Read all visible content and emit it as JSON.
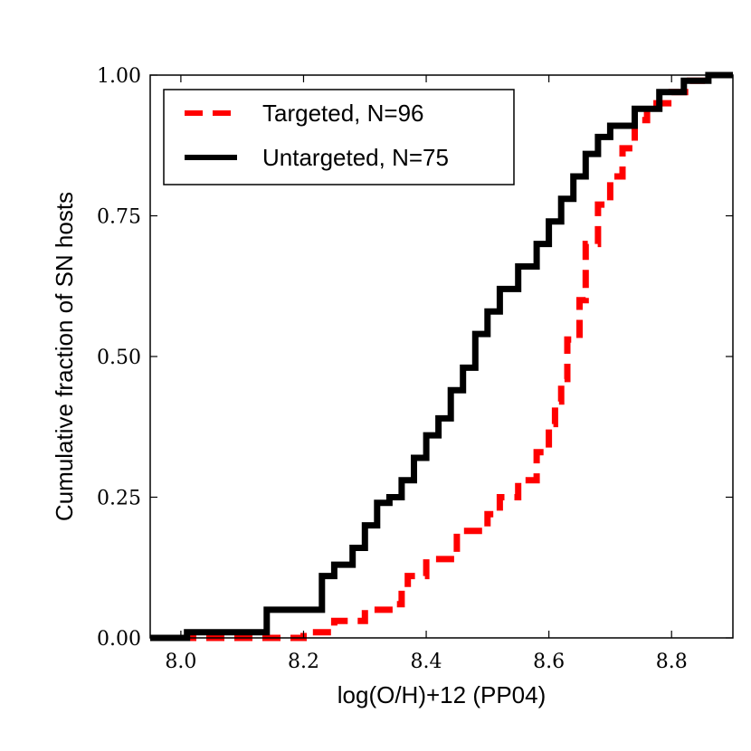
{
  "chart_data": {
    "type": "line",
    "xlabel": "log(O/H)+12 (PP04)",
    "ylabel": "Cumulative fraction of SN hosts",
    "xlim": [
      7.95,
      8.9
    ],
    "ylim": [
      0.0,
      1.0
    ],
    "x_ticks": [
      8.0,
      8.2,
      8.4,
      8.6,
      8.8
    ],
    "x_tick_labels": [
      "8.0",
      "8.2",
      "8.4",
      "8.6",
      "8.8"
    ],
    "y_ticks": [
      0.0,
      0.25,
      0.5,
      0.75,
      1.0
    ],
    "y_tick_labels": [
      "0.00",
      "0.25",
      "0.50",
      "0.75",
      "1.00"
    ],
    "legend_position": "top-left",
    "series": [
      {
        "name": "Targeted, N=96",
        "color": "#ff0000",
        "style": "dashed",
        "x": [
          7.95,
          8.15,
          8.2,
          8.25,
          8.3,
          8.35,
          8.36,
          8.37,
          8.4,
          8.45,
          8.5,
          8.52,
          8.55,
          8.58,
          8.6,
          8.61,
          8.62,
          8.63,
          8.65,
          8.66,
          8.68,
          8.7,
          8.72,
          8.74,
          8.76,
          8.8,
          8.83,
          8.86
        ],
        "y": [
          0.0,
          0.0,
          0.01,
          0.03,
          0.05,
          0.06,
          0.09,
          0.11,
          0.14,
          0.19,
          0.22,
          0.25,
          0.28,
          0.33,
          0.38,
          0.42,
          0.46,
          0.53,
          0.6,
          0.7,
          0.77,
          0.82,
          0.87,
          0.92,
          0.95,
          0.97,
          0.99,
          1.0
        ]
      },
      {
        "name": "Untargeted, N=75",
        "color": "#000000",
        "style": "solid",
        "x": [
          7.95,
          8.01,
          8.14,
          8.23,
          8.25,
          8.28,
          8.3,
          8.32,
          8.34,
          8.36,
          8.38,
          8.4,
          8.42,
          8.44,
          8.46,
          8.48,
          8.5,
          8.52,
          8.55,
          8.58,
          8.6,
          8.62,
          8.64,
          8.66,
          8.68,
          8.7,
          8.74,
          8.78,
          8.82,
          8.86
        ],
        "y": [
          0.0,
          0.01,
          0.05,
          0.11,
          0.13,
          0.16,
          0.2,
          0.24,
          0.25,
          0.28,
          0.32,
          0.36,
          0.39,
          0.44,
          0.48,
          0.54,
          0.58,
          0.62,
          0.66,
          0.7,
          0.74,
          0.78,
          0.82,
          0.86,
          0.89,
          0.91,
          0.94,
          0.97,
          0.99,
          1.0
        ]
      }
    ]
  }
}
